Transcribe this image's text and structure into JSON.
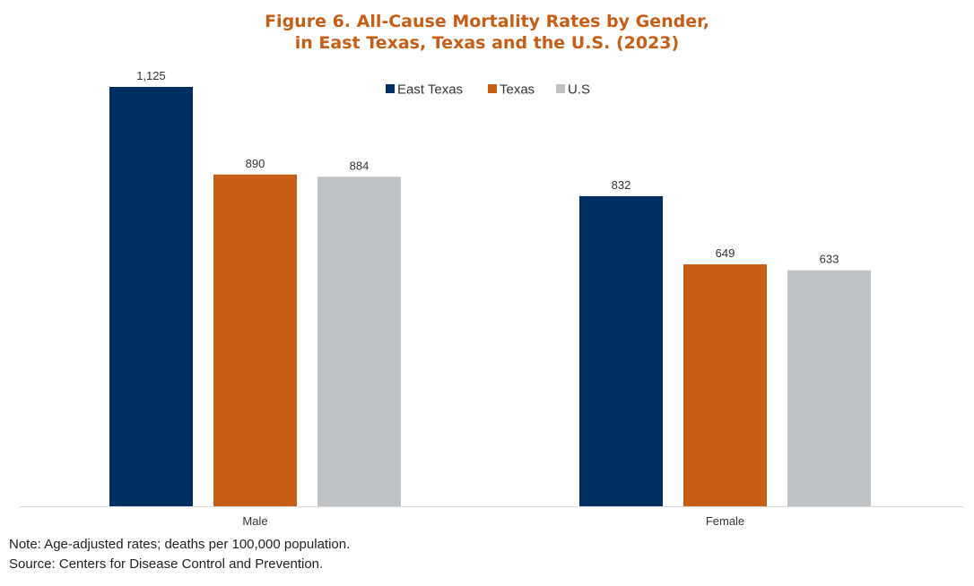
{
  "chart_data": {
    "type": "bar",
    "title_line1": "Figure 6. All-Cause Mortality Rates by Gender,",
    "title_line2": "in East Texas, Texas and the U.S. (2023)",
    "categories": [
      "Male",
      "Female"
    ],
    "series": [
      {
        "name": "East Texas",
        "color": "#002D62",
        "values": [
          1125,
          832
        ],
        "labels": [
          "1,125",
          "832"
        ]
      },
      {
        "name": "Texas",
        "color": "#C75E16",
        "values": [
          890,
          649
        ],
        "labels": [
          "890",
          "649"
        ]
      },
      {
        "name": "U.S",
        "color": "#BFC3C6",
        "values": [
          884,
          633
        ],
        "labels": [
          "884",
          "633"
        ]
      }
    ],
    "ylim": [
      0,
      1125
    ],
    "legend_position": "top-center",
    "grid": false
  },
  "notes": {
    "note": "Note: Age-adjusted rates; deaths per 100,000 population.",
    "source": "Source: Centers for Disease Control and Prevention."
  }
}
